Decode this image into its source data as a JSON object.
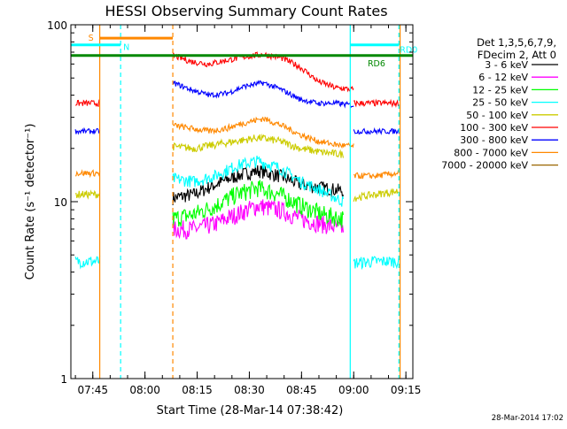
{
  "chart_data": {
    "type": "line",
    "title": "HESSI Observing Summary Count Rates",
    "xlabel": "Start Time (28-Mar-14 07:38:42)",
    "ylabel": "Count Rate (s⁻¹ detector⁻¹)",
    "yscale": "log",
    "ylim": [
      1,
      100
    ],
    "xlim": [
      "07:38:42",
      "09:17:00"
    ],
    "x_ticks": [
      "07:45",
      "08:00",
      "08:15",
      "08:30",
      "08:45",
      "09:00",
      "09:15"
    ],
    "y_ticks": [
      "1",
      "10",
      "100"
    ],
    "legend_header": [
      "Det 1,3,5,6,7,9,",
      "FDecim 2, Att 0"
    ],
    "legend_placement": "right",
    "footer_date": "28-Mar-2014 17:02",
    "segment_times": [
      "07:40",
      "07:45",
      "07:47",
      "08:08",
      "08:13",
      "08:20",
      "08:27",
      "08:34",
      "08:40",
      "08:47",
      "08:54",
      "08:57",
      "09:00",
      "09:06",
      "09:10",
      "09:13"
    ],
    "series": [
      {
        "name": "3 - 6 keV",
        "color": "#000000",
        "noise": 0.09,
        "segments": [
          [],
          [
            10.5,
            11,
            12.5,
            14,
            15,
            14,
            12.5,
            12,
            11.5
          ]
        ]
      },
      {
        "name": "6 - 12 keV",
        "color": "#ff00ff",
        "noise": 0.12,
        "segments": [
          [],
          [
            7,
            7,
            7.5,
            8.5,
            9.5,
            9,
            8,
            7.5,
            7
          ]
        ]
      },
      {
        "name": "12 - 25 keV",
        "color": "#00ff00",
        "noise": 0.12,
        "segments": [
          [],
          [
            8,
            8.5,
            9.5,
            11,
            12,
            11,
            9.5,
            8.5,
            8
          ]
        ]
      },
      {
        "name": "25 - 50 keV",
        "color": "#00ffff",
        "noise": 0.08,
        "segments": [
          [
            4.6,
            4.6,
            4.6
          ],
          [
            13.5,
            13,
            14,
            16,
            17,
            15.5,
            13,
            11.5,
            10
          ],
          [
            4.5,
            4.6,
            4.6
          ]
        ]
      },
      {
        "name": "50 - 100 keV",
        "color": "#cccc00",
        "noise": 0.05,
        "segments": [
          [
            11,
            11,
            11
          ],
          [
            20.5,
            20,
            21,
            22,
            23,
            22,
            20,
            19,
            18.5
          ],
          [
            10.5,
            11,
            11.5
          ]
        ]
      },
      {
        "name": "100 - 300 keV",
        "color": "#ff0000",
        "noise": 0.04,
        "segments": [
          [
            36,
            36,
            36
          ],
          [
            67,
            62,
            60,
            63,
            66,
            68,
            65,
            58,
            48,
            44,
            43
          ],
          [
            36,
            36,
            36
          ]
        ]
      },
      {
        "name": "300 - 800 keV",
        "color": "#0000ff",
        "noise": 0.035,
        "segments": [
          [
            25,
            25,
            25
          ],
          [
            47,
            43,
            40,
            41,
            45,
            47,
            43,
            38,
            36,
            36,
            35
          ],
          [
            25,
            25,
            25
          ]
        ]
      },
      {
        "name": "800 - 7000 keV",
        "color": "#ff8800",
        "noise": 0.04,
        "segments": [
          [
            14.5,
            14.5,
            14.5
          ],
          [
            27,
            26,
            25,
            26,
            28,
            29.5,
            27,
            24,
            22,
            21,
            20.5
          ],
          [
            14,
            14,
            14.5
          ]
        ]
      },
      {
        "name": "7000 - 20000 keV",
        "color": "#996600",
        "noise": 0.03,
        "segments": [
          [],
          [],
          []
        ]
      }
    ],
    "flags": [
      {
        "label": "S",
        "color": "#ff8800",
        "start": "07:47",
        "end": "08:08",
        "level": 84
      },
      {
        "label": "N",
        "color": "#00ffff",
        "start": "07:38:42",
        "end": "07:53",
        "level": 77
      },
      {
        "label": "",
        "color": "#00ffff",
        "start": "08:59",
        "end": "09:13",
        "level": 77
      },
      {
        "label": "RD0",
        "color": "#00ffff",
        "start": "09:13",
        "end": "09:13",
        "level": 72
      },
      {
        "label": "RD6",
        "color": "#008800",
        "start": "07:38:42",
        "end": "09:17",
        "level": 67
      }
    ],
    "vlines": [
      {
        "time": "07:47",
        "color": "#ff8800",
        "style": "solid"
      },
      {
        "time": "07:53",
        "color": "#00ffff",
        "style": "dashed"
      },
      {
        "time": "08:08",
        "color": "#ff8800",
        "style": "dashed"
      },
      {
        "time": "08:59",
        "color": "#00ffff",
        "style": "solid"
      },
      {
        "time": "09:13",
        "color": "#00ffff",
        "style": "dashed"
      },
      {
        "time": "09:13:20",
        "color": "#ff8800",
        "style": "solid"
      }
    ]
  }
}
